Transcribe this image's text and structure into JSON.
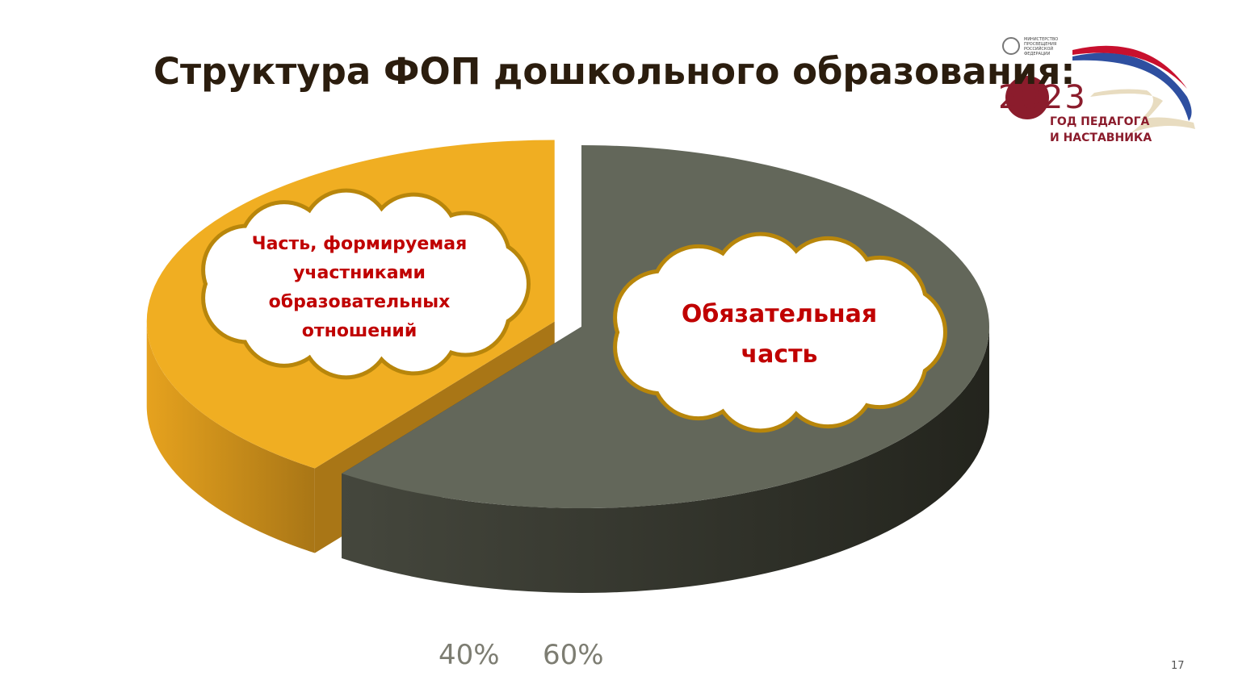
{
  "chart_data": {
    "type": "pie",
    "title": "Структура ФОП дошкольного образования:",
    "categories": [
      "Часть, формируемая участниками образовательных отношений",
      "Обязательная часть"
    ],
    "values": [
      40,
      60
    ],
    "value_labels": [
      "40%",
      "60%"
    ],
    "colors": [
      "#f0ae22",
      "#63675a"
    ]
  },
  "logo": {
    "ministry": "МИНИСТЕРСТВО ПРОСВЕЩЕНИЯ РОССИЙСКОЙ ФЕДЕРАЦИИ",
    "year": "2023",
    "line1": "ГОД ПЕДАГОГА",
    "line2": "И НАСТАВНИКА"
  },
  "page_number": "17"
}
